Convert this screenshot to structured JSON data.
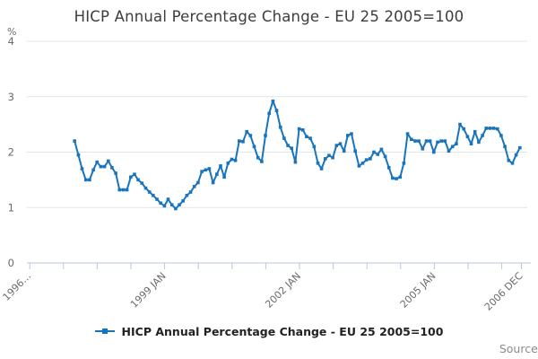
{
  "title": "HICP Annual Percentage Change - EU 25 2005=100",
  "y_axis": {
    "unit_label": "%",
    "ticks": [
      0,
      1,
      2,
      3,
      4
    ]
  },
  "x_axis": {
    "tick_labels": [
      "1996…",
      "1999 JAN",
      "2002 JAN",
      "2005 JAN",
      "2006 DEC"
    ]
  },
  "legend": {
    "label": "HICP Annual Percentage Change - EU 25 2005=100"
  },
  "source_label": "Source:",
  "colors": {
    "line": "#1874bd",
    "grid": "#e4e4e4",
    "axis": "#b9c5e0",
    "tick_text": "#6b6b6b",
    "title_text": "#3d3d3d"
  },
  "chart_data": {
    "type": "line",
    "title": "HICP Annual Percentage Change - EU 25 2005=100",
    "ylabel": "%",
    "ylim": [
      0,
      4
    ],
    "grid": "horizontal",
    "legend_position": "bottom",
    "frequency": "monthly",
    "x_start": "1997 JAN",
    "x_end": "2006 DEC",
    "x_tick_labels": [
      "1996…",
      "1999 JAN",
      "2002 JAN",
      "2005 JAN",
      "2006 DEC"
    ],
    "series": [
      {
        "name": "HICP Annual Percentage Change - EU 25 2005=100",
        "values": [
          2.2,
          1.95,
          1.7,
          1.5,
          1.5,
          1.68,
          1.82,
          1.74,
          1.74,
          1.84,
          1.72,
          1.62,
          1.32,
          1.32,
          1.32,
          1.55,
          1.6,
          1.5,
          1.44,
          1.35,
          1.28,
          1.22,
          1.15,
          1.08,
          1.03,
          1.15,
          1.05,
          0.98,
          1.05,
          1.12,
          1.22,
          1.28,
          1.38,
          1.45,
          1.65,
          1.68,
          1.7,
          1.45,
          1.6,
          1.75,
          1.55,
          1.8,
          1.87,
          1.85,
          2.2,
          2.19,
          2.37,
          2.3,
          2.1,
          1.9,
          1.83,
          2.3,
          2.7,
          2.92,
          2.75,
          2.45,
          2.25,
          2.12,
          2.07,
          1.82,
          2.42,
          2.4,
          2.28,
          2.25,
          2.1,
          1.8,
          1.7,
          1.88,
          1.94,
          1.9,
          2.12,
          2.15,
          2.02,
          2.3,
          2.33,
          2.02,
          1.75,
          1.8,
          1.86,
          1.88,
          2.0,
          1.96,
          2.05,
          1.92,
          1.72,
          1.53,
          1.52,
          1.55,
          1.8,
          2.33,
          2.23,
          2.2,
          2.2,
          2.06,
          2.2,
          2.2,
          2.0,
          2.18,
          2.2,
          2.2,
          2.02,
          2.1,
          2.15,
          2.5,
          2.42,
          2.28,
          2.15,
          2.37,
          2.18,
          2.3,
          2.43,
          2.43,
          2.43,
          2.42,
          2.3,
          2.1,
          1.85,
          1.8,
          1.95,
          2.08
        ]
      }
    ]
  }
}
